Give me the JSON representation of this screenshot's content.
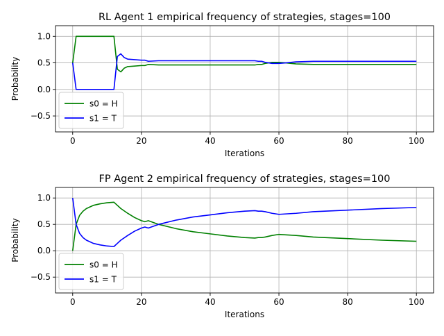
{
  "chart_data": [
    {
      "type": "line",
      "title": "RL Agent 1 empirical frequency of strategies, stages=100",
      "xlabel": "Iterations",
      "ylabel": "Probability",
      "xlim": [
        -5,
        105
      ],
      "ylim": [
        -0.8,
        1.2
      ],
      "xticks": [
        0,
        20,
        40,
        60,
        80,
        100
      ],
      "yticks": [
        -0.5,
        0.0,
        0.5,
        1.0
      ],
      "xtick_labels": [
        "0",
        "20",
        "40",
        "60",
        "80",
        "100"
      ],
      "ytick_labels": [
        "−0.5",
        "0.0",
        "0.5",
        "1.0"
      ],
      "grid": true,
      "legend_position": "lower-left",
      "series": [
        {
          "name": "s0 = H",
          "color": "#008000",
          "x": [
            0,
            1,
            12,
            13,
            14,
            15,
            16,
            18,
            20,
            21,
            22,
            25,
            30,
            40,
            50,
            53,
            54,
            55,
            56,
            58,
            60,
            62,
            65,
            70,
            80,
            90,
            100
          ],
          "y": [
            0.5,
            1.0,
            1.0,
            0.38,
            0.33,
            0.4,
            0.43,
            0.44,
            0.45,
            0.45,
            0.47,
            0.46,
            0.46,
            0.46,
            0.46,
            0.46,
            0.47,
            0.47,
            0.49,
            0.51,
            0.51,
            0.5,
            0.48,
            0.47,
            0.47,
            0.47,
            0.47
          ]
        },
        {
          "name": "s1 = T",
          "color": "#0000ff",
          "x": [
            0,
            1,
            12,
            13,
            14,
            15,
            16,
            18,
            20,
            21,
            22,
            25,
            30,
            40,
            50,
            53,
            54,
            55,
            56,
            58,
            60,
            62,
            65,
            70,
            80,
            90,
            100
          ],
          "y": [
            0.5,
            0.0,
            0.0,
            0.62,
            0.67,
            0.6,
            0.57,
            0.56,
            0.55,
            0.55,
            0.53,
            0.54,
            0.54,
            0.54,
            0.54,
            0.54,
            0.53,
            0.53,
            0.51,
            0.49,
            0.49,
            0.5,
            0.52,
            0.53,
            0.53,
            0.53,
            0.53
          ]
        }
      ]
    },
    {
      "type": "line",
      "title": "FP Agent 2 empirical frequency of strategies, stages=100",
      "xlabel": "Iterations",
      "ylabel": "Probability",
      "xlim": [
        -5,
        105
      ],
      "ylim": [
        -0.8,
        1.2
      ],
      "xticks": [
        0,
        20,
        40,
        60,
        80,
        100
      ],
      "yticks": [
        -0.5,
        0.0,
        0.5,
        1.0
      ],
      "xtick_labels": [
        "0",
        "20",
        "40",
        "60",
        "80",
        "100"
      ],
      "ytick_labels": [
        "−0.5",
        "0.0",
        "0.5",
        "1.0"
      ],
      "grid": true,
      "legend_position": "lower-left",
      "series": [
        {
          "name": "s0 = H",
          "color": "#008000",
          "x": [
            0,
            1,
            2,
            3,
            4,
            5,
            6,
            8,
            10,
            12,
            13,
            14,
            16,
            18,
            20,
            21,
            22,
            25,
            30,
            35,
            40,
            45,
            50,
            53,
            54,
            55,
            56,
            58,
            60,
            65,
            70,
            80,
            90,
            100
          ],
          "y": [
            0.0,
            0.5,
            0.67,
            0.75,
            0.8,
            0.83,
            0.86,
            0.89,
            0.91,
            0.92,
            0.86,
            0.8,
            0.71,
            0.63,
            0.57,
            0.55,
            0.57,
            0.5,
            0.42,
            0.36,
            0.32,
            0.28,
            0.25,
            0.24,
            0.25,
            0.25,
            0.26,
            0.29,
            0.31,
            0.29,
            0.26,
            0.23,
            0.2,
            0.18
          ]
        },
        {
          "name": "s1 = T",
          "color": "#0000ff",
          "x": [
            0,
            1,
            2,
            3,
            4,
            5,
            6,
            8,
            10,
            12,
            13,
            14,
            16,
            18,
            20,
            21,
            22,
            25,
            30,
            35,
            40,
            45,
            50,
            53,
            54,
            55,
            56,
            58,
            60,
            65,
            70,
            80,
            90,
            100
          ],
          "y": [
            1.0,
            0.5,
            0.33,
            0.25,
            0.2,
            0.17,
            0.14,
            0.11,
            0.09,
            0.08,
            0.14,
            0.2,
            0.29,
            0.37,
            0.43,
            0.45,
            0.43,
            0.5,
            0.58,
            0.64,
            0.68,
            0.72,
            0.75,
            0.76,
            0.75,
            0.75,
            0.74,
            0.71,
            0.69,
            0.71,
            0.74,
            0.77,
            0.8,
            0.82
          ]
        }
      ]
    }
  ]
}
